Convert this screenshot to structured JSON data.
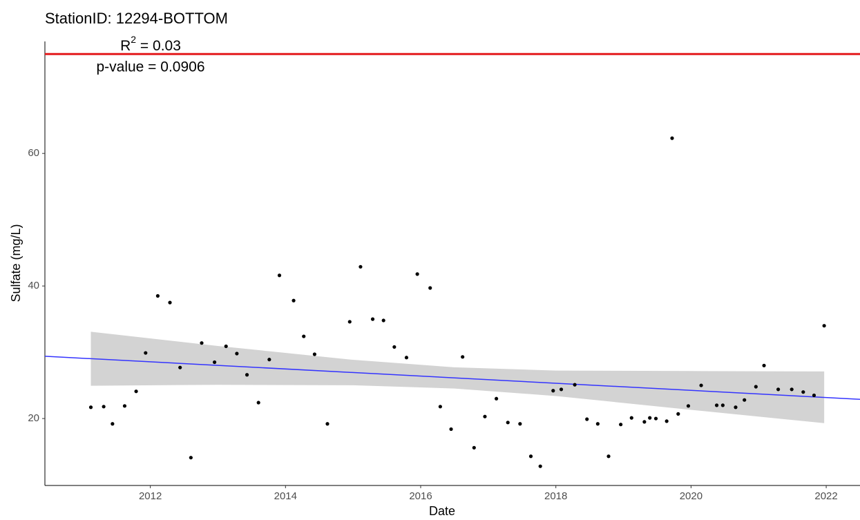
{
  "chart_data": {
    "type": "scatter",
    "title": "StationID: 12294-BOTTOM",
    "x_label": "Date",
    "y_label": "Sulfate (mg/L)",
    "annotations": {
      "r2": {
        "base": "R",
        "sup": "2",
        "rest": " = 0.03"
      },
      "p_value": "p-value = 0.0906"
    },
    "xlim": [
      2010.44,
      2022.5
    ],
    "ylim": [
      9.9,
      76.9
    ],
    "xticks": [
      2012,
      2014,
      2016,
      2018,
      2020,
      2022
    ],
    "yticks": [
      20,
      40,
      60
    ],
    "reference_line": {
      "value": 75,
      "color": "#e41a1c"
    },
    "points": {
      "color": "#000000",
      "x": [
        2011.12,
        2011.31,
        2011.44,
        2011.62,
        2011.79,
        2011.93,
        2012.11,
        2012.29,
        2012.44,
        2012.6,
        2012.76,
        2012.95,
        2013.12,
        2013.28,
        2013.43,
        2013.6,
        2013.76,
        2013.91,
        2014.12,
        2014.27,
        2014.43,
        2014.62,
        2014.95,
        2015.11,
        2015.29,
        2015.45,
        2015.61,
        2015.79,
        2015.95,
        2016.14,
        2016.29,
        2016.45,
        2016.62,
        2016.79,
        2016.95,
        2017.12,
        2017.29,
        2017.47,
        2017.63,
        2017.77,
        2017.96,
        2018.08,
        2018.28,
        2018.46,
        2018.62,
        2018.78,
        2018.96,
        2019.12,
        2019.31,
        2019.39,
        2019.48,
        2019.64,
        2019.72,
        2019.81,
        2019.96,
        2020.15,
        2020.38,
        2020.47,
        2020.66,
        2020.79,
        2020.96,
        2021.08,
        2021.29,
        2021.49,
        2021.66,
        2021.82,
        2021.97
      ],
      "values": [
        21.7,
        21.8,
        19.2,
        21.9,
        24.1,
        29.9,
        38.5,
        37.5,
        27.7,
        14.1,
        31.4,
        28.5,
        30.9,
        29.8,
        26.6,
        22.4,
        28.9,
        41.6,
        37.8,
        32.4,
        29.7,
        19.2,
        34.6,
        42.9,
        35.0,
        34.8,
        30.8,
        29.2,
        41.8,
        39.7,
        21.8,
        18.4,
        29.3,
        15.6,
        20.3,
        23.0,
        19.4,
        19.2,
        14.3,
        12.8,
        24.2,
        24.4,
        25.1,
        19.9,
        19.2,
        14.3,
        19.1,
        20.1,
        19.5,
        20.1,
        20.0,
        19.6,
        62.3,
        20.7,
        21.9,
        25.0,
        22.0,
        22.0,
        21.7,
        22.8,
        24.8,
        28.0,
        24.4,
        24.4,
        24.0,
        23.5,
        34.0
      ]
    },
    "trend": {
      "color": "#3333ff",
      "x": [
        2010.44,
        2022.5
      ],
      "values": [
        29.4,
        22.9
      ]
    },
    "band": {
      "color": "#d3d3d3",
      "x": [
        2011.12,
        2013,
        2015,
        2016.5,
        2018,
        2020,
        2021.97
      ],
      "lower": [
        24.95,
        25.09,
        25.02,
        24.53,
        23.4,
        21.31,
        19.3
      ],
      "upper": [
        33.1,
        30.95,
        28.86,
        27.73,
        27.24,
        27.17,
        27.1
      ]
    }
  }
}
